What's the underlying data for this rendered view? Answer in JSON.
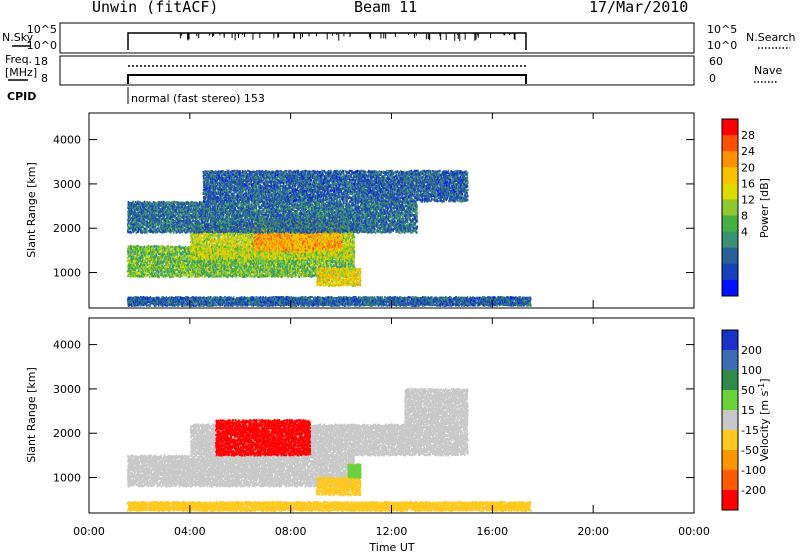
{
  "header": {
    "station": "Unwin (fitACF)",
    "beam": "Beam 11",
    "date": "17/Mar/2010"
  },
  "strip_panels": {
    "nsky": {
      "label": "N.Sky",
      "left_ticks": [
        "10^5",
        "10^0"
      ],
      "right_ticks": [
        "10^5",
        "10^0"
      ],
      "right_label": "N.Search"
    },
    "freq": {
      "label_line1": "Freq.",
      "label_line2": "[MHz]",
      "left_ticks": [
        "18",
        "8"
      ],
      "right_ticks": [
        "60",
        "0"
      ],
      "right_label": "Nave"
    },
    "cpid": {
      "label": "CPID",
      "mode_text": "normal (fast stereo) 153"
    }
  },
  "colorbars": {
    "power": {
      "title": "Power [dB]",
      "tick_labels": [
        "28",
        "24",
        "20",
        "16",
        "12",
        "8",
        "4"
      ],
      "colors": [
        "#ff0000",
        "#ff5000",
        "#ff9000",
        "#ffc000",
        "#dcdc00",
        "#90c830",
        "#44b044",
        "#3a9070",
        "#2a6098",
        "#1840b8",
        "#0010ff"
      ]
    },
    "velocity": {
      "title": "Velocity [m s",
      "title_sup": "-1",
      "title_end": "]",
      "tick_labels": [
        "200",
        "100",
        "50",
        "15",
        "-15",
        "-50",
        "-100",
        "-200"
      ],
      "colors": [
        "#1a32c8",
        "#3c6cb4",
        "#2e8a4a",
        "#6cd23c",
        "#c8c8c8",
        "#ffc81e",
        "#ff9600",
        "#ff5a00",
        "#ff0000"
      ]
    }
  },
  "chart_data": [
    {
      "type": "heatmap",
      "title": "Power [dB]",
      "xlabel": "",
      "ylabel": "Slant Range [km]",
      "xlim": [
        "00:00",
        "24:00"
      ],
      "ylim": [
        200,
        4600
      ],
      "x_ticks": [
        "00:00",
        "04:00",
        "08:00",
        "12:00",
        "16:00",
        "20:00",
        "00:00"
      ],
      "y_ticks": [
        1000,
        2000,
        3000,
        4000
      ],
      "colorbar_range": [
        0,
        32
      ],
      "colorbar_ticks": [
        4,
        8,
        12,
        16,
        20,
        24,
        28
      ],
      "regions": [
        {
          "t_start": "01:30",
          "t_end": "10:30",
          "range_km": [
            900,
            1600
          ],
          "power_db": 14
        },
        {
          "t_start": "04:00",
          "t_end": "10:30",
          "range_km": [
            1300,
            2100
          ],
          "power_db": 18
        },
        {
          "t_start": "06:30",
          "t_end": "10:00",
          "range_km": [
            1500,
            2200
          ],
          "power_db": 24
        },
        {
          "t_start": "09:00",
          "t_end": "10:45",
          "range_km": [
            700,
            1100
          ],
          "power_db": 20
        },
        {
          "t_start": "01:30",
          "t_end": "13:00",
          "range_km": [
            1900,
            2600
          ],
          "power_db": 7
        },
        {
          "t_start": "04:30",
          "t_end": "15:00",
          "range_km": [
            2600,
            3300
          ],
          "power_db": 6
        },
        {
          "t_start": "01:30",
          "t_end": "17:30",
          "range_km": [
            250,
            450
          ],
          "power_db": 6
        }
      ]
    },
    {
      "type": "heatmap",
      "title": "Velocity [m s-1]",
      "xlabel": "Time UT",
      "ylabel": "Slant Range [km]",
      "xlim": [
        "00:00",
        "24:00"
      ],
      "ylim": [
        200,
        4600
      ],
      "x_ticks": [
        "00:00",
        "04:00",
        "08:00",
        "12:00",
        "16:00",
        "20:00",
        "00:00"
      ],
      "y_ticks": [
        1000,
        2000,
        3000,
        4000
      ],
      "colorbar_ticks": [
        200,
        100,
        50,
        15,
        -15,
        -50,
        -100,
        -200
      ],
      "regions": [
        {
          "t_start": "01:30",
          "t_end": "10:30",
          "range_km": [
            800,
            1500
          ],
          "velocity_ms": 0
        },
        {
          "t_start": "04:00",
          "t_end": "12:30",
          "range_km": [
            1500,
            2200
          ],
          "velocity_ms": 0
        },
        {
          "t_start": "05:00",
          "t_end": "08:45",
          "range_km": [
            1500,
            2300
          ],
          "velocity_ms": -220
        },
        {
          "t_start": "09:00",
          "t_end": "10:45",
          "range_km": [
            600,
            1000
          ],
          "velocity_ms": -30
        },
        {
          "t_start": "10:15",
          "t_end": "10:45",
          "range_km": [
            1000,
            1300
          ],
          "velocity_ms": 30
        },
        {
          "t_start": "12:30",
          "t_end": "15:00",
          "range_km": [
            1500,
            3000
          ],
          "velocity_ms": 0
        },
        {
          "t_start": "01:30",
          "t_end": "17:30",
          "range_km": [
            250,
            450
          ],
          "velocity_ms": -30
        }
      ]
    }
  ]
}
